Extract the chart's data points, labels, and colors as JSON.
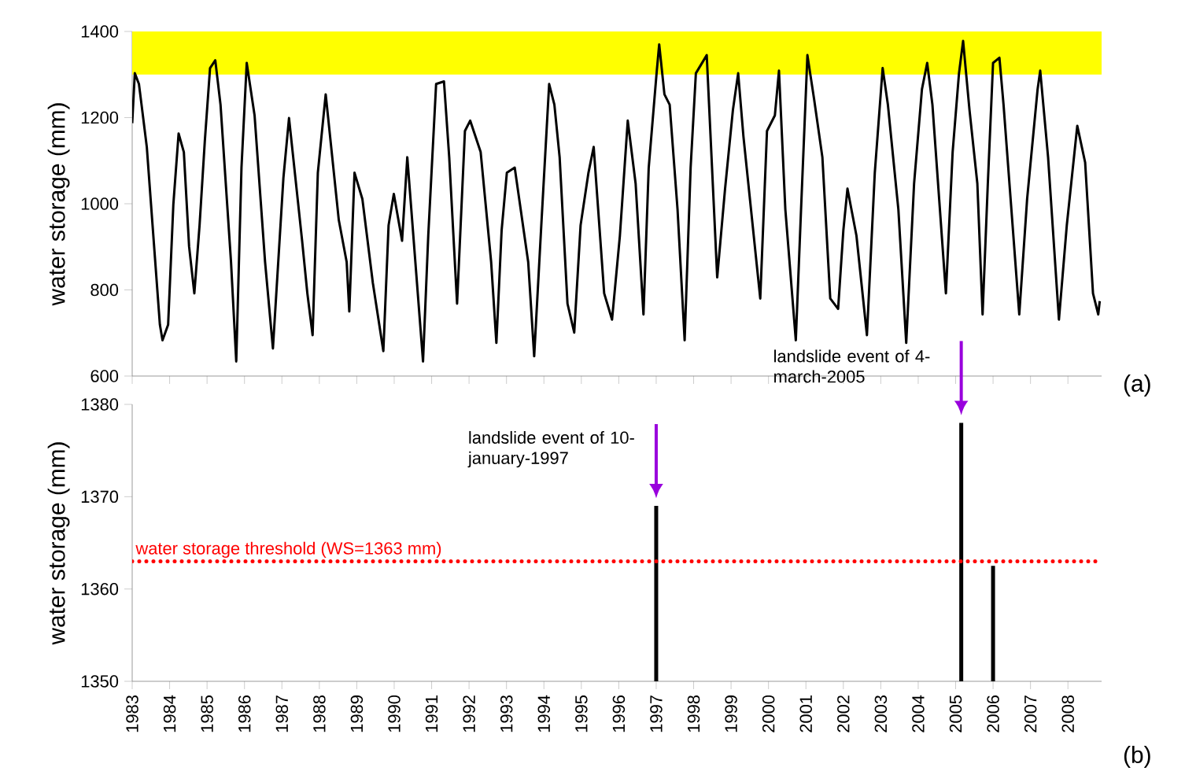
{
  "chart_data": [
    {
      "type": "line",
      "ylabel": "water storage (mm)",
      "xlim": [
        1983,
        2008.9
      ],
      "ylim": [
        600,
        1400
      ],
      "xticks": [
        1983,
        1984,
        1985,
        1986,
        1987,
        1988,
        1989,
        1990,
        1991,
        1992,
        1993,
        1994,
        1995,
        1996,
        1997,
        1998,
        1999,
        2000,
        2001,
        2002,
        2003,
        2004,
        2005,
        2006,
        2007,
        2008
      ],
      "yticks": [
        600,
        800,
        1000,
        1200,
        1400
      ],
      "tick_labels": "y",
      "x": [
        1983.0,
        1983.07,
        1983.18,
        1983.25,
        1983.39,
        1983.74,
        1983.81,
        1983.96,
        1984.1,
        1984.24,
        1984.38,
        1984.52,
        1984.66,
        1984.8,
        1984.94,
        1985.08,
        1985.22,
        1985.36,
        1985.64,
        1985.78,
        1985.92,
        1986.06,
        1986.27,
        1986.55,
        1986.76,
        1987.04,
        1987.19,
        1987.54,
        1987.68,
        1987.82,
        1987.96,
        1988.17,
        1988.52,
        1988.73,
        1988.8,
        1988.94,
        1989.15,
        1989.43,
        1989.71,
        1989.85,
        1989.99,
        1990.21,
        1990.35,
        1990.77,
        1990.91,
        1991.12,
        1991.33,
        1991.47,
        1991.68,
        1991.89,
        1992.03,
        1992.31,
        1992.59,
        1992.73,
        1992.87,
        1993.01,
        1993.22,
        1993.58,
        1993.74,
        1993.93,
        1994.14,
        1994.28,
        1994.42,
        1994.63,
        1994.81,
        1994.98,
        1995.19,
        1995.33,
        1995.61,
        1995.82,
        1996.03,
        1996.24,
        1996.45,
        1996.66,
        1996.8,
        1997.01,
        1997.08,
        1997.22,
        1997.36,
        1997.57,
        1997.76,
        1997.92,
        1998.06,
        1998.35,
        1998.63,
        1998.84,
        1999.05,
        1999.19,
        1999.33,
        1999.78,
        1999.96,
        2000.17,
        2000.28,
        2000.45,
        2000.73,
        2000.87,
        2001.04,
        2001.22,
        2001.44,
        2001.65,
        2001.86,
        2002.0,
        2002.11,
        2002.35,
        2002.63,
        2002.84,
        2003.05,
        2003.19,
        2003.47,
        2003.68,
        2003.89,
        2004.1,
        2004.24,
        2004.38,
        2004.74,
        2004.92,
        2005.09,
        2005.2,
        2005.37,
        2005.58,
        2005.72,
        2005.86,
        2006.0,
        2006.17,
        2006.28,
        2006.7,
        2006.91,
        2007.19,
        2007.26,
        2007.47,
        2007.76,
        2007.97,
        2008.25,
        2008.46,
        2008.67,
        2008.81,
        2008.85
      ],
      "series": [
        {
          "color": "#000000",
          "values": [
            1187,
            1303,
            1278,
            1230,
            1132,
            719,
            683,
            719,
            999,
            1163,
            1120,
            901,
            792,
            950,
            1145,
            1315,
            1333,
            1230,
            865,
            634,
            1084,
            1327,
            1205,
            865,
            664,
            1060,
            1199,
            914,
            792,
            695,
            1072,
            1254,
            962,
            865,
            750,
            1072,
            1011,
            816,
            658,
            950,
            1023,
            914,
            1108,
            634,
            926,
            1278,
            1284,
            1108,
            768,
            1169,
            1193,
            1120,
            865,
            677,
            938,
            1072,
            1084,
            865,
            646,
            950,
            1278,
            1230,
            1108,
            768,
            701,
            950,
            1072,
            1132,
            792,
            731,
            926,
            1193,
            1047,
            743,
            1084,
            1303,
            1370,
            1254,
            1230,
            987,
            683,
            1084,
            1303,
            1345,
            829,
            1035,
            1218,
            1303,
            1157,
            780,
            1169,
            1205,
            1309,
            987,
            683,
            987,
            1345,
            1242,
            1108,
            780,
            756,
            938,
            1035,
            926,
            695,
            1072,
            1315,
            1230,
            987,
            677,
            1047,
            1266,
            1327,
            1230,
            792,
            1120,
            1303,
            1378,
            1218,
            1047,
            743,
            1047,
            1327,
            1339,
            1230,
            743,
            1011,
            1266,
            1309,
            1108,
            731,
            950,
            1181,
            1096,
            792,
            743,
            774
          ]
        }
      ],
      "bands": [
        {
          "axis": "y",
          "from": 1300,
          "to": 1400,
          "color": "#ffff00"
        }
      ],
      "annotations": [
        "(a)"
      ]
    },
    {
      "type": "bar",
      "ylabel": "water storage (mm)",
      "xlim": [
        1983,
        2008.9
      ],
      "ylim": [
        1350,
        1380
      ],
      "xticks": [
        1983,
        1984,
        1985,
        1986,
        1987,
        1988,
        1989,
        1990,
        1991,
        1992,
        1993,
        1994,
        1995,
        1996,
        1997,
        1998,
        1999,
        2000,
        2001,
        2002,
        2003,
        2004,
        2005,
        2006,
        2007,
        2008
      ],
      "yticks": [
        1350,
        1360,
        1370,
        1380
      ],
      "x": [
        1997,
        2005.15,
        2006
      ],
      "values": [
        1369,
        1378,
        1362.5
      ],
      "color": "#000000",
      "ref_lines": [
        {
          "axis": "y",
          "value": 1363,
          "label": "water storage threshold (WS=1363 mm)",
          "color": "#ff0000",
          "line_style": "dotted"
        }
      ],
      "annotations": [
        {
          "text": "landslide event of 10-january-1997",
          "x": 1997,
          "y": 1369
        },
        {
          "text": "landslide event of 4-march-2005",
          "x": 2005.15,
          "y": 1378
        },
        "(b)"
      ]
    }
  ]
}
